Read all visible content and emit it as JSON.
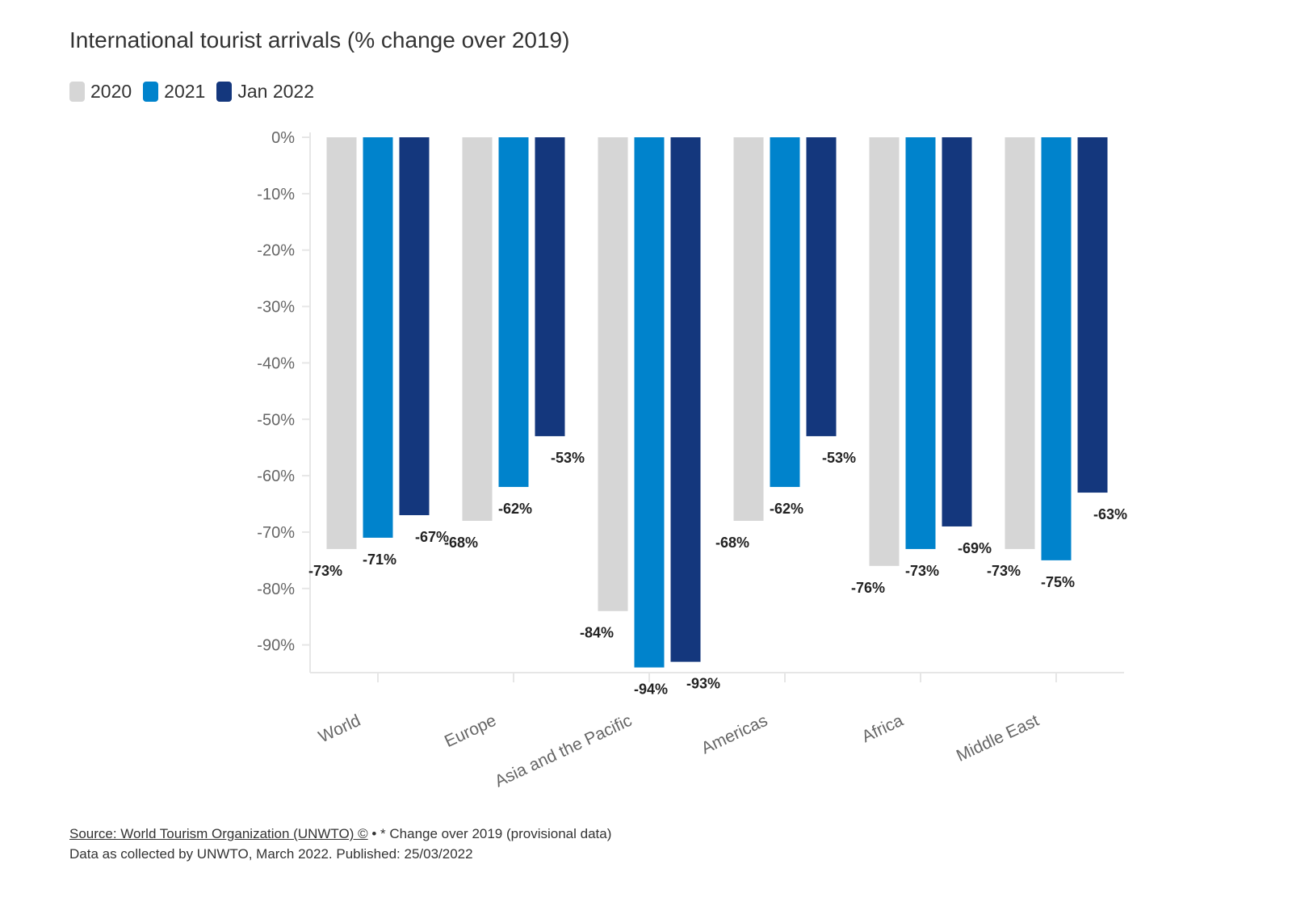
{
  "title": "International tourist arrivals (% change over 2019)",
  "legend": [
    {
      "label": "2020",
      "color": "#d6d6d6"
    },
    {
      "label": "2021",
      "color": "#0083cc"
    },
    {
      "label": "Jan 2022",
      "color": "#14377d"
    }
  ],
  "footer": {
    "source_link": "Source: World Tourism Organization (UNWTO) ©",
    "note": " • * Change over 2019 (provisional data)",
    "line2": "Data as collected by UNWTO, March 2022. Published: 25/03/2022"
  },
  "chart_data": {
    "type": "bar",
    "title": "International tourist arrivals (% change over 2019)",
    "categories": [
      "World",
      "Europe",
      "Asia and the Pacific",
      "Americas",
      "Africa",
      "Middle East"
    ],
    "series": [
      {
        "name": "2020",
        "values": [
          -73,
          -68,
          -84,
          -68,
          -76,
          -73
        ],
        "color": "#d6d6d6"
      },
      {
        "name": "2021",
        "values": [
          -71,
          -62,
          -94,
          -62,
          -73,
          -75
        ],
        "color": "#0083cc"
      },
      {
        "name": "Jan 2022",
        "values": [
          -67,
          -53,
          -93,
          -53,
          -69,
          -63
        ],
        "color": "#14377d"
      }
    ],
    "data_labels": {
      "2020": [
        "-73%",
        "-68%",
        "-84%",
        "-68%",
        "-76%",
        "-73%"
      ],
      "2021": [
        "-71%",
        "-62%",
        "-94%",
        "-62%",
        "-73%",
        "-75%"
      ],
      "Jan 2022": [
        "-67%",
        "-53%",
        "-93%",
        "-53%",
        "-69%",
        "-63%"
      ]
    },
    "yticks": [
      "0%",
      "-10%",
      "-20%",
      "-30%",
      "-40%",
      "-50%",
      "-60%",
      "-70%",
      "-80%",
      "-90%"
    ],
    "ytick_values": [
      0,
      -10,
      -20,
      -30,
      -40,
      -50,
      -60,
      -70,
      -80,
      -90
    ],
    "ylim": [
      -95,
      0
    ],
    "xlabel": "",
    "ylabel": "",
    "grid": false,
    "legend_position": "top-left"
  }
}
